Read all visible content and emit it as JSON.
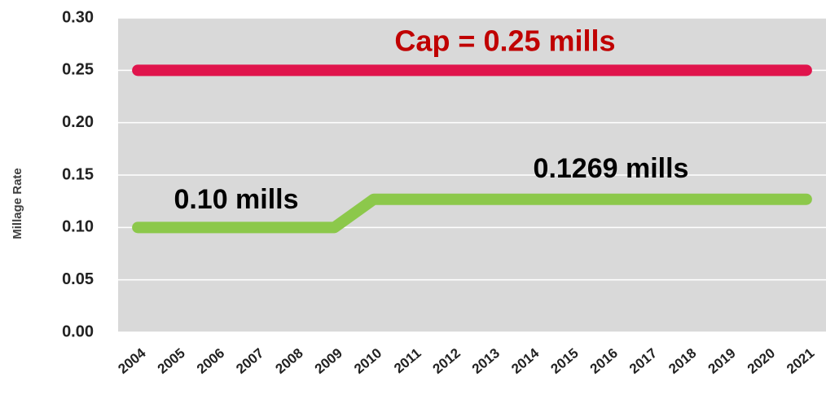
{
  "chart_data": {
    "type": "line",
    "y_label": "Millage Rate",
    "categories": [
      "2004",
      "2005",
      "2006",
      "2007",
      "2008",
      "2009",
      "2010",
      "2011",
      "2012",
      "2013",
      "2014",
      "2015",
      "2016",
      "2017",
      "2018",
      "2019",
      "2020",
      "2021"
    ],
    "series": [
      {
        "color": "#e0144c",
        "values": [
          0.25,
          0.25,
          0.25,
          0.25,
          0.25,
          0.25,
          0.25,
          0.25,
          0.25,
          0.25,
          0.25,
          0.25,
          0.25,
          0.25,
          0.25,
          0.25,
          0.25,
          0.25
        ]
      },
      {
        "color": "#8cc84b",
        "values": [
          0.1,
          0.1,
          0.1,
          0.1,
          0.1,
          0.1,
          0.1269,
          0.1269,
          0.1269,
          0.1269,
          0.1269,
          0.1269,
          0.1269,
          0.1269,
          0.1269,
          0.1269,
          0.1269,
          0.1269
        ]
      }
    ],
    "annotations": [
      {
        "text": "Cap = 0.25 mills",
        "color": "#c00000"
      },
      {
        "text": "0.10 mills",
        "color": "#000000"
      },
      {
        "text": "0.1269 mills",
        "color": "#000000"
      }
    ],
    "ylim": [
      0,
      0.3
    ],
    "yticks": [
      {
        "value": 0,
        "label": "0.00"
      },
      {
        "value": 0.05,
        "label": "0.05"
      },
      {
        "value": 0.1,
        "label": "0.10"
      },
      {
        "value": 0.15,
        "label": "0.15"
      },
      {
        "value": 0.2,
        "label": "0.20"
      },
      {
        "value": 0.25,
        "label": "0.25"
      },
      {
        "value": 0.3,
        "label": "0.30"
      }
    ],
    "grid": true,
    "plot_background": "#d9d9d9"
  }
}
